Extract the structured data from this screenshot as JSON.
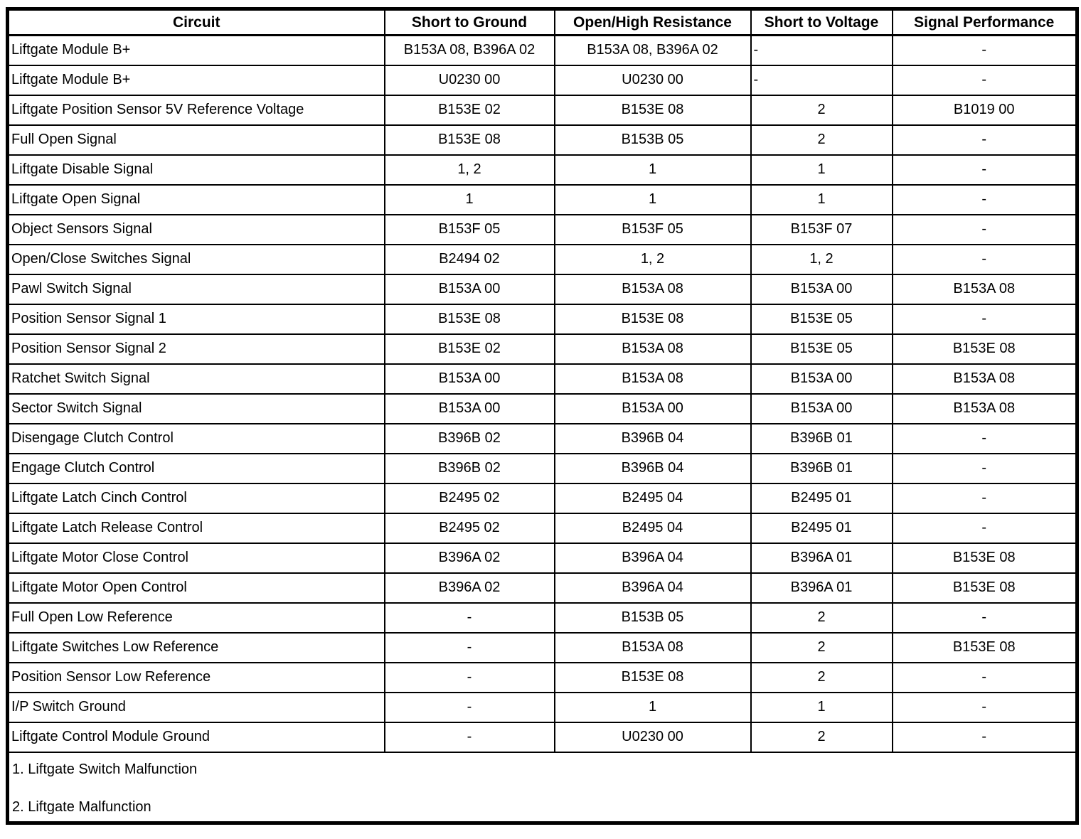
{
  "colors": {
    "border": "#000000",
    "background": "#ffffff",
    "text": "#000000"
  },
  "table": {
    "columns": [
      {
        "key": "circuit",
        "label": "Circuit"
      },
      {
        "key": "short_to_ground",
        "label": "Short to Ground"
      },
      {
        "key": "open_high_resistance",
        "label": "Open/High Resistance"
      },
      {
        "key": "short_to_voltage",
        "label": "Short to Voltage"
      },
      {
        "key": "signal_performance",
        "label": "Signal Performance"
      }
    ],
    "rows": [
      [
        "Liftgate Module B+",
        "B153A 08, B396A 02",
        "B153A 08, B396A 02",
        "-",
        "-"
      ],
      [
        "Liftgate Module B+",
        "U0230 00",
        "U0230 00",
        "-",
        "-"
      ],
      [
        "Liftgate Position Sensor 5V Reference Voltage",
        "B153E 02",
        "B153E 08",
        "2",
        "B1019 00"
      ],
      [
        "Full Open Signal",
        "B153E 08",
        "B153B 05",
        "2",
        "-"
      ],
      [
        "Liftgate Disable Signal",
        "1, 2",
        "1",
        "1",
        "-"
      ],
      [
        "Liftgate Open Signal",
        "1",
        "1",
        "1",
        "-"
      ],
      [
        "Object Sensors Signal",
        "B153F 05",
        "B153F 05",
        "B153F 07",
        "-"
      ],
      [
        "Open/Close Switches Signal",
        "B2494 02",
        "1, 2",
        "1, 2",
        "-"
      ],
      [
        "Pawl Switch Signal",
        "B153A 00",
        "B153A 08",
        "B153A 00",
        "B153A 08"
      ],
      [
        "Position Sensor Signal 1",
        "B153E 08",
        "B153E 08",
        "B153E 05",
        "-"
      ],
      [
        "Position Sensor Signal 2",
        "B153E 02",
        "B153A 08",
        "B153E 05",
        "B153E 08"
      ],
      [
        "Ratchet Switch Signal",
        "B153A 00",
        "B153A 08",
        "B153A 00",
        "B153A 08"
      ],
      [
        "Sector Switch Signal",
        "B153A 00",
        "B153A 00",
        "B153A 00",
        "B153A 08"
      ],
      [
        "Disengage Clutch Control",
        "B396B 02",
        "B396B 04",
        "B396B 01",
        "-"
      ],
      [
        "Engage Clutch Control",
        "B396B 02",
        "B396B 04",
        "B396B 01",
        "-"
      ],
      [
        "Liftgate Latch Cinch Control",
        "B2495 02",
        "B2495 04",
        "B2495 01",
        "-"
      ],
      [
        "Liftgate Latch Release Control",
        "B2495 02",
        "B2495 04",
        "B2495 01",
        "-"
      ],
      [
        "Liftgate Motor Close Control",
        "B396A 02",
        "B396A 04",
        "B396A 01",
        "B153E 08"
      ],
      [
        "Liftgate Motor Open Control",
        "B396A 02",
        "B396A 04",
        "B396A 01",
        "B153E 08"
      ],
      [
        "Full Open Low Reference",
        "-",
        "B153B 05",
        "2",
        "-"
      ],
      [
        "Liftgate Switches Low Reference",
        "-",
        "B153A 08",
        "2",
        "B153E 08"
      ],
      [
        "Position Sensor Low Reference",
        "-",
        "B153E 08",
        "2",
        "-"
      ],
      [
        "I/P Switch Ground",
        "-",
        "1",
        "1",
        "-"
      ],
      [
        "Liftgate Control Module Ground",
        "-",
        "U0230 00",
        "2",
        "-"
      ]
    ],
    "notes": [
      "1. Liftgate Switch Malfunction",
      "2. Liftgate Malfunction"
    ]
  }
}
